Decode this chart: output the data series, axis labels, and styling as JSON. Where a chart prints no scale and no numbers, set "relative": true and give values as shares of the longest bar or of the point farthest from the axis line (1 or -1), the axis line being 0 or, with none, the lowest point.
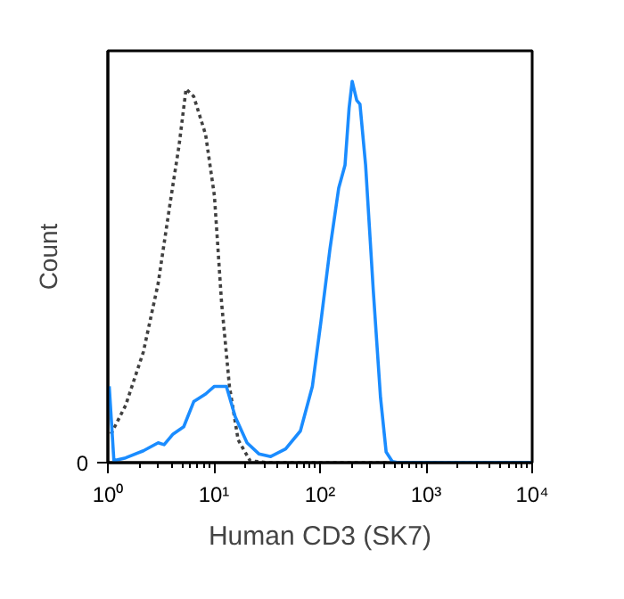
{
  "chart_data": {
    "type": "line",
    "relative": true,
    "xlabel": "Human CD3 (SK7)",
    "ylabel": "Count",
    "log": "x",
    "xlim": [
      1,
      10000
    ],
    "xticks": [
      {
        "value": 1,
        "label": "10⁰"
      },
      {
        "value": 10,
        "label": "10¹"
      },
      {
        "value": 100,
        "label": "10²"
      },
      {
        "value": 1000,
        "label": "10³"
      },
      {
        "value": 10000,
        "label": "10⁴"
      }
    ],
    "annotations": [
      "0"
    ],
    "grid": false,
    "series": [
      {
        "color": "#404040",
        "line_style": "dotted",
        "x": [
          1.07,
          1.47,
          2.16,
          2.98,
          3.86,
          4.68,
          5.46,
          6.45,
          8.35,
          10.1,
          11.8,
          14.0,
          16.9,
          21.9,
          32.2,
          9300
        ],
        "values": [
          0.075,
          0.15,
          0.29,
          0.47,
          0.68,
          0.83,
          0.98,
          0.96,
          0.86,
          0.7,
          0.42,
          0.2,
          0.06,
          0.005,
          0,
          0
        ]
      },
      {
        "color": "#1a8cff",
        "line_style": "solid",
        "x": [
          1.03,
          1.14,
          1.47,
          2.16,
          2.98,
          3.39,
          4.12,
          5.19,
          6.45,
          8.35,
          10.1,
          13.1,
          15.9,
          20.5,
          26.5,
          34.3,
          47.4,
          65.3,
          84.7,
          102,
          124,
          150,
          172,
          188,
          201,
          222,
          238,
          269,
          318,
          372,
          420,
          480,
          545,
          9800
        ],
        "values": [
          0.2,
          0.005,
          0.0125,
          0.031,
          0.052,
          0.047,
          0.075,
          0.094,
          0.16,
          0.18,
          0.2,
          0.2,
          0.12,
          0.052,
          0.023,
          0.016,
          0.036,
          0.083,
          0.2,
          0.37,
          0.56,
          0.72,
          0.78,
          0.93,
          1.0,
          0.95,
          0.94,
          0.78,
          0.45,
          0.17,
          0.028,
          0.003,
          0,
          0
        ]
      }
    ]
  }
}
